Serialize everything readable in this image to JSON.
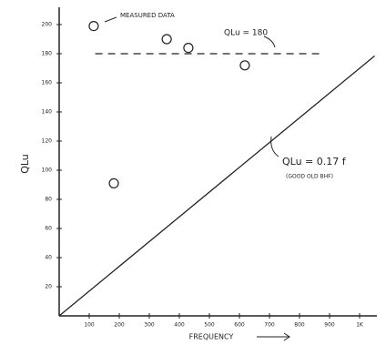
{
  "chart_data": {
    "type": "scatter",
    "xlabel": "FREQUENCY",
    "ylabel": "QLu",
    "xlim": [
      0,
      1050
    ],
    "ylim": [
      0,
      210
    ],
    "xticks": [
      100,
      200,
      300,
      400,
      500,
      600,
      700,
      800,
      900,
      {
        "value": 1000,
        "label": "1K"
      }
    ],
    "yticks": [
      20,
      40,
      60,
      80,
      100,
      120,
      140,
      160,
      180,
      200
    ],
    "points": {
      "x": [
        115,
        358,
        430,
        618,
        182
      ],
      "y": [
        199,
        190,
        184,
        172,
        91
      ],
      "label": "MEASURED DATA"
    },
    "hline": {
      "y": 180,
      "label": "QLu = 180"
    },
    "fit_line": {
      "x": [
        0,
        1050
      ],
      "y": [
        0,
        178.5
      ],
      "label": "QLu = 0.17 f",
      "note": "(GOOD OLD BHF)"
    },
    "color": "#222222"
  }
}
